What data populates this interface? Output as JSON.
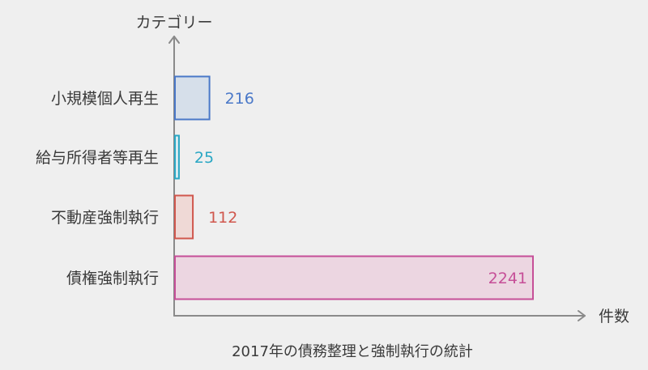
{
  "chart_data": {
    "type": "bar",
    "orientation": "horizontal",
    "title": "2017年の債務整理と強制執行の統計",
    "xlabel": "件数",
    "ylabel": "カテゴリー",
    "categories": [
      "小規模個人再生",
      "給与所得者等再生",
      "不動産強制執行",
      "債権強制執行"
    ],
    "values": [
      216,
      25,
      112,
      2241
    ],
    "colors": {
      "stroke": [
        "#4a78c8",
        "#2aa7c4",
        "#d0574d",
        "#c64f98"
      ],
      "fill": [
        "#d6dfea",
        "#d9ecf1",
        "#efd9d6",
        "#ecd6e1"
      ]
    },
    "grid": false,
    "legend": "none"
  }
}
